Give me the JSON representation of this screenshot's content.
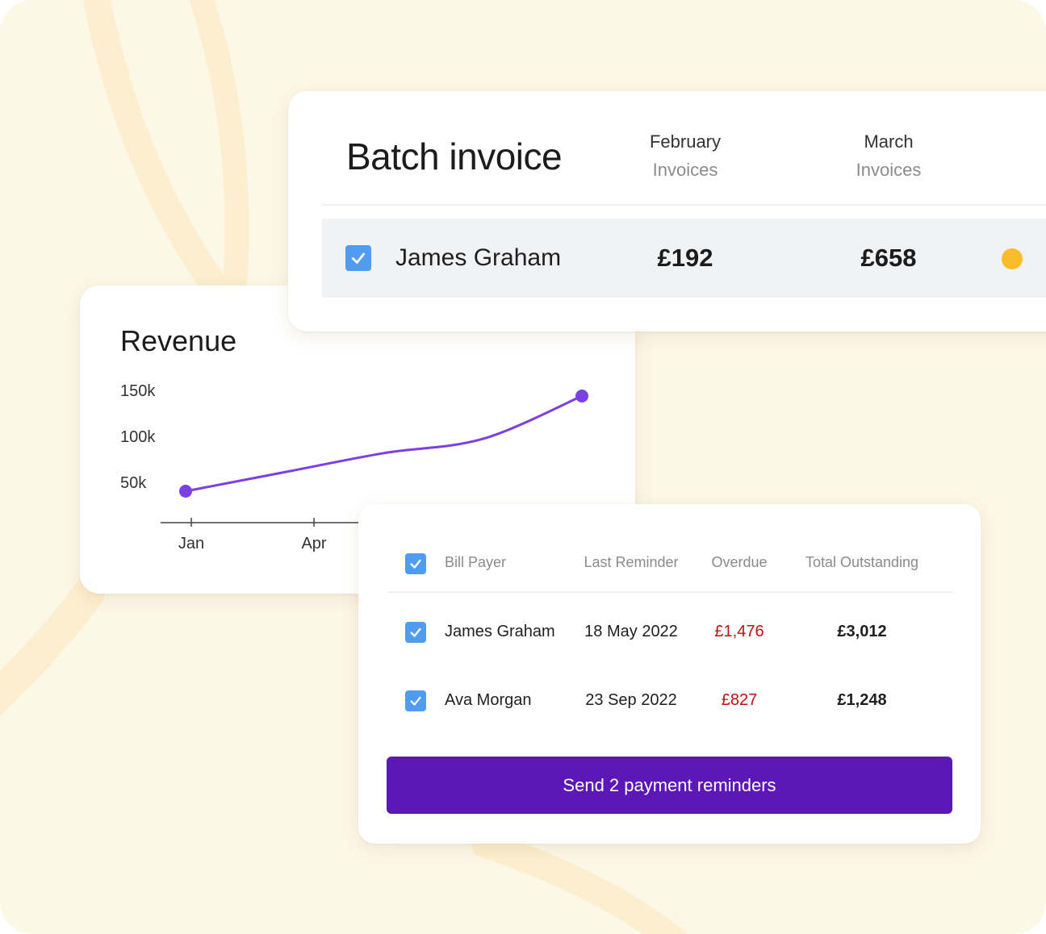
{
  "batch_invoice": {
    "title": "Batch invoice",
    "columns": [
      {
        "month": "February",
        "label": "Invoices"
      },
      {
        "month": "March",
        "label": "Invoices"
      }
    ],
    "row": {
      "checked": true,
      "name": "James Graham",
      "february": "£192",
      "march": "£658",
      "status_color": "#fbbc2b"
    }
  },
  "revenue": {
    "title": "Revenue"
  },
  "chart_data": {
    "type": "line",
    "title": "Revenue",
    "y_tick_labels": [
      "150k",
      "100k",
      "50k"
    ],
    "x_tick_labels": [
      "Jan",
      "Apr"
    ],
    "series": [
      {
        "x": [
          0,
          1,
          2,
          3,
          4
        ],
        "y": [
          50,
          70,
          90,
          105,
          150
        ],
        "color": "#7b3fe4"
      }
    ],
    "ylim": [
      50,
      150
    ],
    "grid": false
  },
  "reminders": {
    "headers": {
      "bill_payer": "Bill Payer",
      "last_reminder": "Last Reminder",
      "overdue": "Overdue",
      "total_outstanding": "Total Outstanding"
    },
    "rows": [
      {
        "name": "James Graham",
        "last_reminder": "18 May 2022",
        "overdue": "£1,476",
        "total": "£3,012",
        "checked": true
      },
      {
        "name": "Ava Morgan",
        "last_reminder": "23 Sep 2022",
        "overdue": "£827",
        "total": "£1,248",
        "checked": true
      }
    ],
    "send_button": "Send 2 payment reminders",
    "accent_color": "#5b18b7",
    "overdue_color": "#c01010"
  }
}
